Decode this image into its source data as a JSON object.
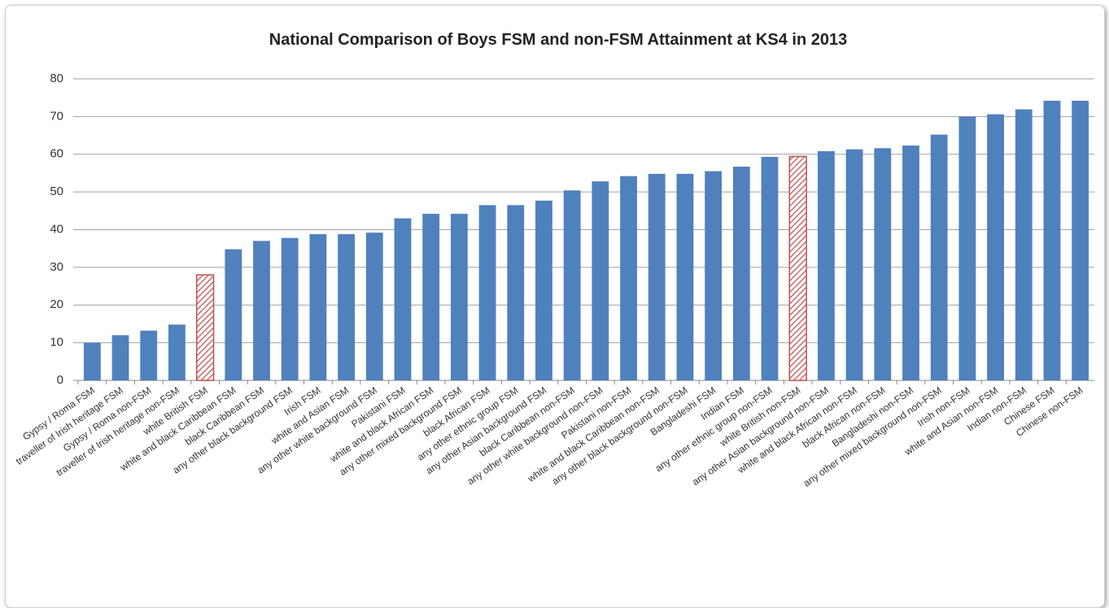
{
  "chart_data": {
    "type": "bar",
    "title": "National Comparison of Boys FSM and non-FSM Attainment at KS4 in 2013",
    "categories": [
      "Gypsy / Roma FSM",
      "traveller of Irish heritage FSM",
      "Gypsy / Roma non-FSM",
      "traveller of Irish heritage non-FSM",
      "white British FSM",
      "white and black Caribbean FSM",
      "black Caribbean FSM",
      "any other black background FSM",
      "Irish FSM",
      "white and Asian FSM",
      "any other white background FSM",
      "Pakistani FSM",
      "white and black African FSM",
      "any other mixed background FSM",
      "black African FSM",
      "any other ethnic group FSM",
      "any other Asian background FSM",
      "black Caribbean non-FSM",
      "any other white background non-FSM",
      "Pakistani non-FSM",
      "white and black Caribbean non-FSM",
      "any other black background non-FSM",
      "Bangladeshi FSM",
      "Indian FSM",
      "any other ethnic group non-FSM",
      "white British non-FSM",
      "any other Asian background non-FSM",
      "white and black African non-FSM",
      "black African non-FSM",
      "Bangladeshi non-FSM",
      "any other mixed background non-FSM",
      "Irish non-FSM",
      "white and Asian non-FSM",
      "Indian non-FSM",
      "Chinese FSM",
      "Chinese non-FSM"
    ],
    "values": [
      10,
      12,
      13.2,
      14.8,
      28,
      34.8,
      37,
      37.8,
      38.8,
      38.8,
      39.2,
      43,
      44.2,
      44.2,
      46.5,
      46.5,
      47.7,
      50.4,
      52.8,
      54.2,
      54.8,
      54.8,
      55.5,
      56.7,
      59.3,
      59.4,
      60.8,
      61.3,
      61.6,
      62.3,
      65.2,
      70,
      70.6,
      71.9,
      74.2,
      74.2
    ],
    "color": "#4f81bd",
    "hatched_color": "#c0504d",
    "hatched": [
      4,
      25
    ],
    "ylim": [
      0,
      80
    ],
    "yticks": [
      0,
      10,
      20,
      30,
      40,
      50,
      60,
      70,
      80
    ],
    "grid": true
  }
}
